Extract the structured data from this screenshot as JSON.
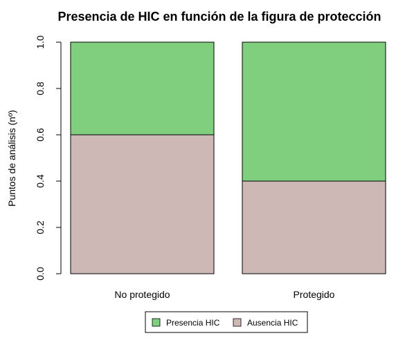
{
  "chart_data": {
    "type": "bar",
    "stacked": true,
    "title": "Presencia de HIC en función de la figura de protección",
    "xlabel": "",
    "ylabel": "Puntos de análisis (nº)",
    "ylim": [
      0,
      1
    ],
    "yticks": [
      "0.0",
      "0.2",
      "0.4",
      "0.6",
      "0.8",
      "1.0"
    ],
    "categories": [
      "No protegido",
      "Protegido"
    ],
    "series": [
      {
        "name": "Ausencia HIC",
        "values": [
          0.6,
          0.4
        ],
        "color": "#cdb8b6"
      },
      {
        "name": "Presencia HIC",
        "values": [
          0.4,
          0.6
        ],
        "color": "#7fcf7f"
      }
    ],
    "legend": {
      "placement": "bottom",
      "entries": [
        "Presencia HIC",
        "Ausencia HIC"
      ]
    },
    "grid": false
  }
}
